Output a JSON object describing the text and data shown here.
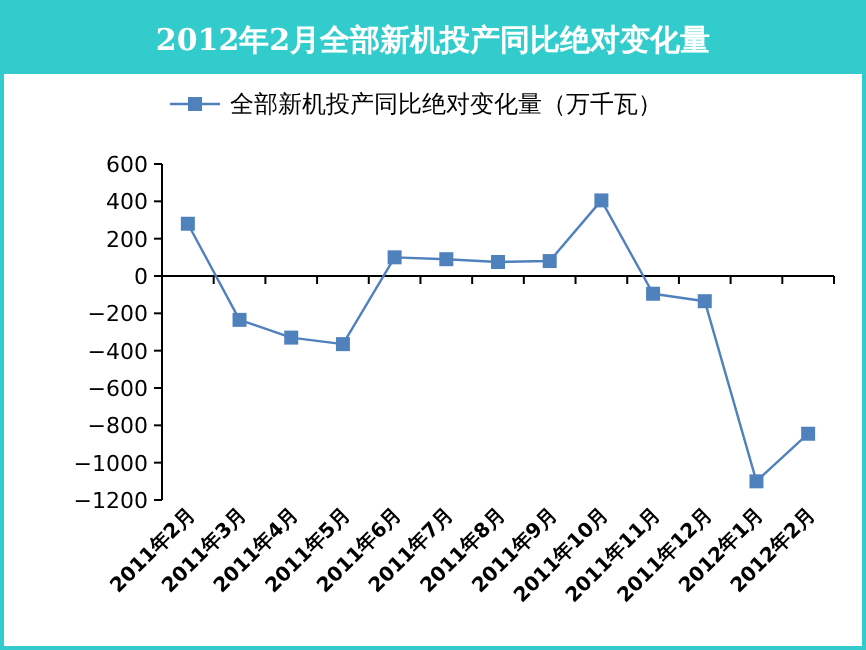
{
  "chart_data": {
    "type": "line",
    "title": "2012年2月全部新机投产同比绝对变化量",
    "categories": [
      "2011年2月",
      "2011年3月",
      "2011年4月",
      "2011年5月",
      "2011年6月",
      "2011年7月",
      "2011年8月",
      "2011年9月",
      "2011年10月",
      "2011年11月",
      "2011年12月",
      "2012年1月",
      "2012年2月"
    ],
    "series": [
      {
        "name": "全部新机投产同比绝对变化量（万千瓦）",
        "color": "#4f81bd",
        "values": [
          280,
          -235,
          -330,
          -365,
          100,
          90,
          75,
          80,
          405,
          -95,
          -135,
          -1100,
          -845
        ]
      }
    ],
    "ylim": [
      -1200,
      600
    ],
    "yticks": [
      -1200,
      -1000,
      -800,
      -600,
      -400,
      -200,
      0,
      200,
      400,
      600
    ],
    "legend": "top",
    "marker": "square"
  }
}
